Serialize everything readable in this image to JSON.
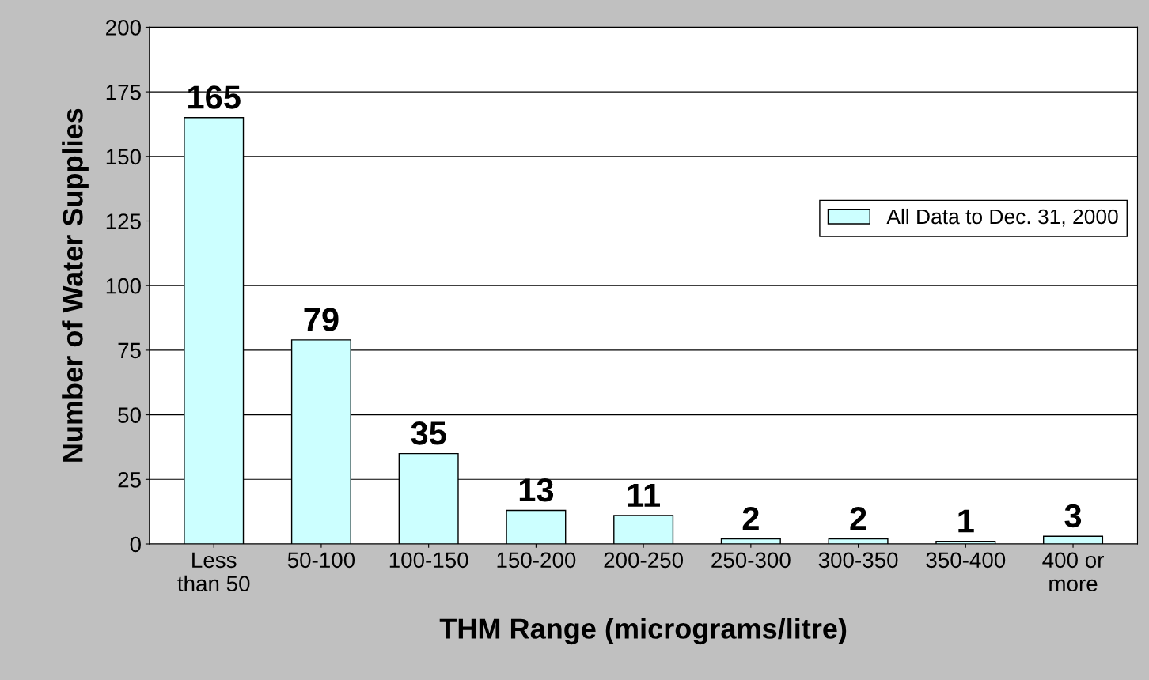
{
  "chart_data": {
    "type": "bar",
    "categories": [
      "Less\nthan 50",
      "50-100",
      "100-150",
      "150-200",
      "200-250",
      "250-300",
      "300-350",
      "350-400",
      "400 or\nmore"
    ],
    "series": [
      {
        "name": "All Data to Dec. 31, 2000",
        "color": "#ccffff",
        "values": [
          165,
          79,
          35,
          13,
          11,
          2,
          2,
          1,
          3
        ]
      }
    ],
    "xlabel": "THM Range (micrograms/litre)",
    "ylabel": "Number of Water Supplies",
    "ylim": [
      0,
      200
    ],
    "yticks": [
      0,
      25,
      50,
      75,
      100,
      125,
      150,
      175,
      200
    ],
    "grid": "y",
    "legend": "right",
    "data_labels": true
  }
}
